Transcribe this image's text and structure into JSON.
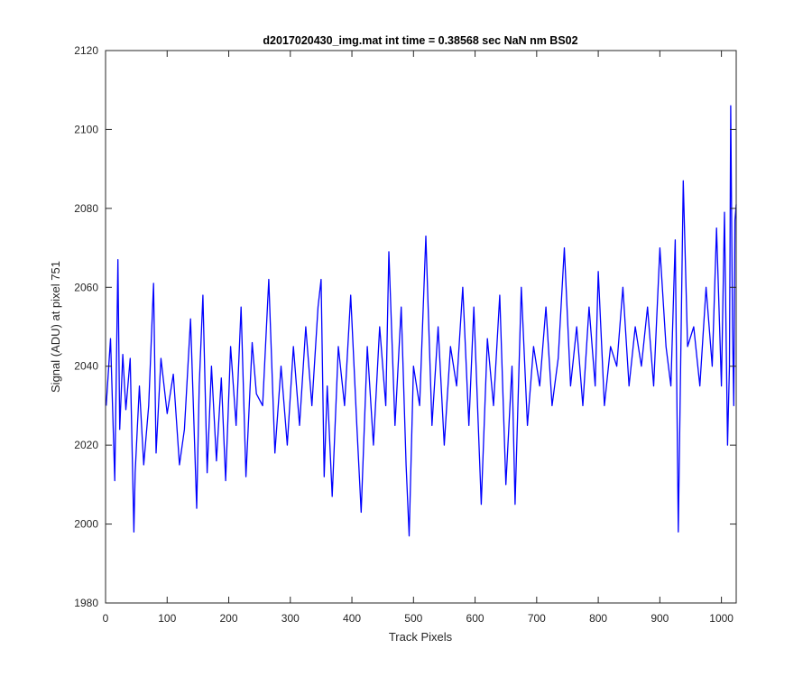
{
  "chart_data": {
    "type": "line",
    "title": "d2017020430_img.mat int time = 0.38568 sec  NaN nm BS02",
    "xlabel": "Track Pixels",
    "ylabel": "Signal (ADU) at pixel 751",
    "xlim": [
      0,
      1024
    ],
    "ylim": [
      1980,
      2120
    ],
    "xticks": [
      0,
      100,
      200,
      300,
      400,
      500,
      600,
      700,
      800,
      900,
      1000
    ],
    "yticks": [
      1980,
      2000,
      2020,
      2040,
      2060,
      2080,
      2100,
      2120
    ],
    "grid": false,
    "legend": "none",
    "series": [
      {
        "color": "#0000ff",
        "x": [
          1,
          8,
          15,
          20,
          23,
          28,
          33,
          40,
          46,
          48,
          55,
          62,
          70,
          78,
          82,
          90,
          100,
          110,
          120,
          128,
          138,
          148,
          152,
          158,
          165,
          172,
          180,
          188,
          195,
          203,
          212,
          220,
          228,
          238,
          245,
          255,
          265,
          275,
          285,
          295,
          305,
          315,
          325,
          335,
          345,
          350,
          355,
          360,
          368,
          378,
          388,
          398,
          408,
          415,
          425,
          435,
          445,
          455,
          460,
          470,
          480,
          488,
          493,
          500,
          510,
          520,
          530,
          540,
          550,
          560,
          570,
          580,
          590,
          598,
          610,
          620,
          630,
          640,
          650,
          660,
          665,
          675,
          685,
          695,
          705,
          715,
          725,
          735,
          745,
          755,
          765,
          775,
          785,
          795,
          800,
          810,
          820,
          830,
          840,
          850,
          860,
          870,
          880,
          890,
          900,
          910,
          918,
          925,
          930,
          938,
          945,
          955,
          965,
          975,
          985,
          992,
          1000,
          1005,
          1010,
          1013,
          1015,
          1018,
          1020,
          1022,
          1024
        ],
        "y": [
          2030,
          2047,
          2011,
          2067,
          2024,
          2043,
          2029,
          2042,
          1998,
          2013,
          2035,
          2015,
          2030,
          2061,
          2018,
          2042,
          2028,
          2038,
          2015,
          2024,
          2052,
          2004,
          2035,
          2058,
          2013,
          2040,
          2016,
          2037,
          2011,
          2045,
          2025,
          2055,
          2012,
          2046,
          2033,
          2030,
          2062,
          2018,
          2040,
          2020,
          2045,
          2025,
          2050,
          2030,
          2055,
          2062,
          2012,
          2035,
          2007,
          2045,
          2030,
          2058,
          2025,
          2003,
          2045,
          2020,
          2050,
          2030,
          2069,
          2025,
          2055,
          2015,
          1997,
          2040,
          2030,
          2073,
          2025,
          2050,
          2020,
          2045,
          2035,
          2060,
          2025,
          2055,
          2005,
          2047,
          2030,
          2058,
          2010,
          2040,
          2005,
          2060,
          2025,
          2045,
          2035,
          2055,
          2030,
          2042,
          2070,
          2035,
          2050,
          2030,
          2055,
          2035,
          2064,
          2030,
          2045,
          2040,
          2060,
          2035,
          2050,
          2040,
          2055,
          2035,
          2070,
          2045,
          2035,
          2072,
          1998,
          2087,
          2045,
          2050,
          2035,
          2060,
          2040,
          2075,
          2035,
          2079,
          2020,
          2040,
          2106,
          2050,
          2030,
          2077,
          2081
        ]
      }
    ]
  }
}
